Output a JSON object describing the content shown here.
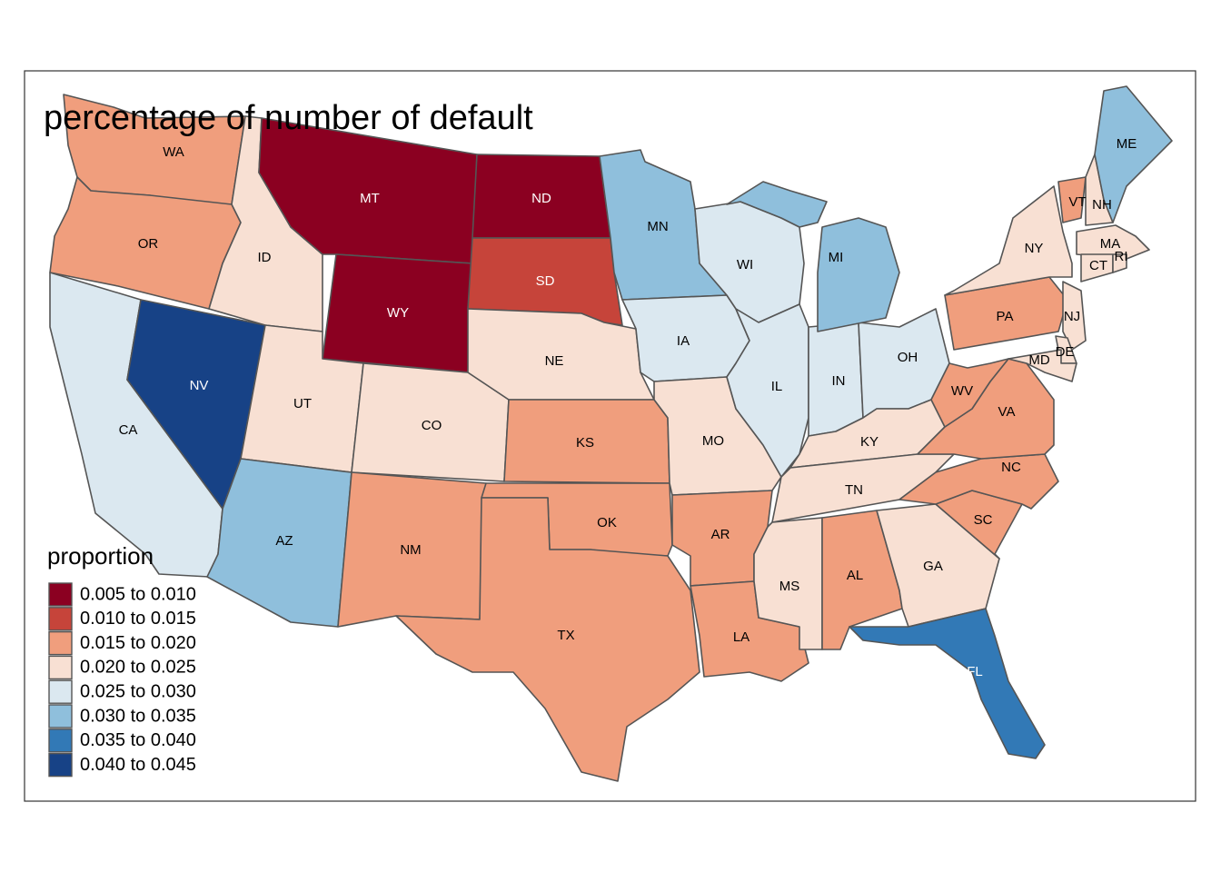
{
  "title": "percentage of number of default",
  "legend": {
    "title": "proportion",
    "items": [
      {
        "label": "0.005 to 0.010",
        "color": "#8b0021"
      },
      {
        "label": "0.010 to 0.015",
        "color": "#c6443a"
      },
      {
        "label": "0.015 to 0.020",
        "color": "#f09e7d"
      },
      {
        "label": "0.020 to 0.025",
        "color": "#f8e0d3"
      },
      {
        "label": "0.025 to 0.030",
        "color": "#dbe8f0"
      },
      {
        "label": "0.030 to 0.035",
        "color": "#8fbfdc"
      },
      {
        "label": "0.035 to 0.040",
        "color": "#3279b6"
      },
      {
        "label": "0.040 to 0.045",
        "color": "#174286"
      }
    ]
  },
  "states": [
    {
      "label": "WA",
      "color": "#f09e7d"
    },
    {
      "label": "OR",
      "color": "#f09e7d"
    },
    {
      "label": "CA",
      "color": "#dbe8f0"
    },
    {
      "label": "NV",
      "color": "#174286"
    },
    {
      "label": "ID",
      "color": "#f8e0d3"
    },
    {
      "label": "MT",
      "color": "#8b0021"
    },
    {
      "label": "WY",
      "color": "#8b0021"
    },
    {
      "label": "UT",
      "color": "#f8e0d3"
    },
    {
      "label": "CO",
      "color": "#f8e0d3"
    },
    {
      "label": "AZ",
      "color": "#8fbfdc"
    },
    {
      "label": "NM",
      "color": "#f09e7d"
    },
    {
      "label": "ND",
      "color": "#8b0021"
    },
    {
      "label": "SD",
      "color": "#c6443a"
    },
    {
      "label": "NE",
      "color": "#f8e0d3"
    },
    {
      "label": "KS",
      "color": "#f09e7d"
    },
    {
      "label": "OK",
      "color": "#f09e7d"
    },
    {
      "label": "TX",
      "color": "#f09e7d"
    },
    {
      "label": "MN",
      "color": "#8fbfdc"
    },
    {
      "label": "IA",
      "color": "#dbe8f0"
    },
    {
      "label": "MO",
      "color": "#f8e0d3"
    },
    {
      "label": "AR",
      "color": "#f09e7d"
    },
    {
      "label": "LA",
      "color": "#f09e7d"
    },
    {
      "label": "WI",
      "color": "#dbe8f0"
    },
    {
      "label": "IL",
      "color": "#dbe8f0"
    },
    {
      "label": "IN",
      "color": "#dbe8f0"
    },
    {
      "label": "OH",
      "color": "#dbe8f0"
    },
    {
      "label": "MI",
      "color": "#8fbfdc"
    },
    {
      "label": "KY",
      "color": "#f8e0d3"
    },
    {
      "label": "TN",
      "color": "#f8e0d3"
    },
    {
      "label": "MS",
      "color": "#f8e0d3"
    },
    {
      "label": "AL",
      "color": "#f09e7d"
    },
    {
      "label": "GA",
      "color": "#f8e0d3"
    },
    {
      "label": "FL",
      "color": "#3279b6"
    },
    {
      "label": "SC",
      "color": "#f09e7d"
    },
    {
      "label": "NC",
      "color": "#f09e7d"
    },
    {
      "label": "VA",
      "color": "#f09e7d"
    },
    {
      "label": "WV",
      "color": "#f09e7d"
    },
    {
      "label": "PA",
      "color": "#f09e7d"
    },
    {
      "label": "NY",
      "color": "#f8e0d3"
    },
    {
      "label": "VT",
      "color": "#f09e7d"
    },
    {
      "label": "NH",
      "color": "#f8e0d3"
    },
    {
      "label": "ME",
      "color": "#8fbfdc"
    },
    {
      "label": "MA",
      "color": "#f8e0d3"
    },
    {
      "label": "CT",
      "color": "#f8e0d3"
    },
    {
      "label": "RI",
      "color": "#f8e0d3"
    },
    {
      "label": "NJ",
      "color": "#f8e0d3"
    },
    {
      "label": "DE",
      "color": "#f8e0d3"
    },
    {
      "label": "MD",
      "color": "#f8e0d3"
    }
  ]
}
